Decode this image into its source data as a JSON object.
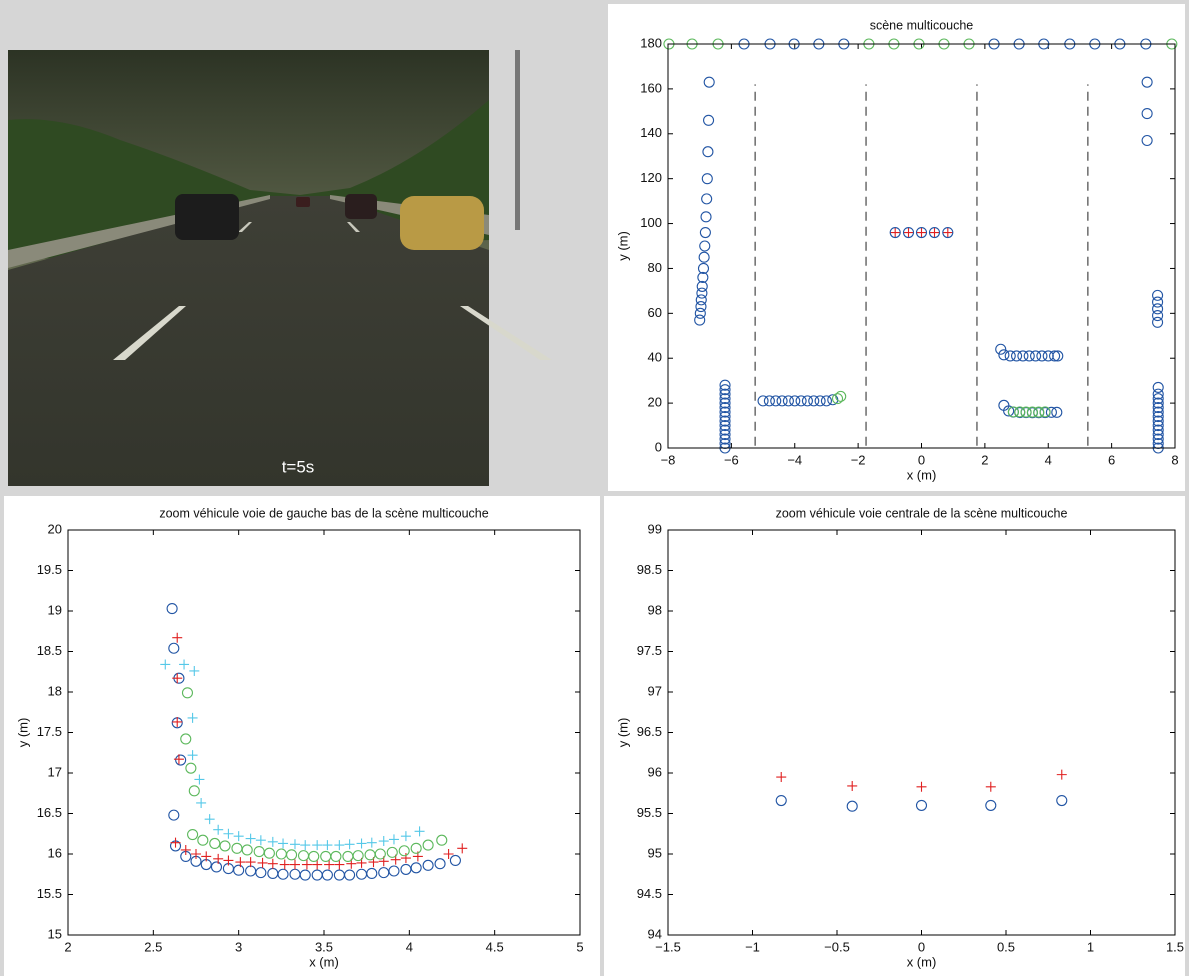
{
  "image": {
    "caption": "t=5s"
  },
  "chart_data": [
    {
      "type": "scatter",
      "title": "scène multicouche",
      "xlabel": "x (m)",
      "ylabel": "y (m)",
      "xlim": [
        -8,
        8
      ],
      "ylim": [
        0,
        180
      ],
      "xticks": [
        {
          "value": -8,
          "label": "−8"
        },
        {
          "value": -6,
          "label": "−6"
        },
        {
          "value": -4,
          "label": "−4"
        },
        {
          "value": -2,
          "label": "−2"
        },
        0,
        2,
        4,
        6,
        8
      ],
      "yticks": [
        0,
        20,
        40,
        60,
        80,
        100,
        120,
        140,
        160,
        180
      ],
      "lane_markings_x": [
        -5.25,
        -1.75,
        1.75,
        5.25
      ],
      "lane_markings_y": [
        1,
        162
      ],
      "series": [
        {
          "color": "#5cb85c",
          "marker": "o",
          "x": [
            -7.97,
            -7.24,
            -6.42,
            -1.66,
            -0.87,
            -0.08,
            0.71,
            1.5,
            7.9
          ],
          "y": [
            180,
            180,
            180,
            180,
            180,
            180,
            180,
            180,
            180
          ]
        },
        {
          "color": "#2255a4",
          "marker": "o",
          "x": [
            -5.6,
            -4.78,
            -4.02,
            -3.24,
            -2.45,
            2.29,
            3.08,
            3.86,
            4.68,
            5.47,
            6.26,
            7.08
          ],
          "y": [
            180,
            180,
            180,
            180,
            180,
            180,
            180,
            180,
            180,
            180,
            180,
            180
          ]
        },
        {
          "color": "#2255a4",
          "marker": "o",
          "x": [
            -6.2,
            -6.2,
            -6.2,
            -6.2,
            -6.2,
            -6.2,
            -6.2,
            -6.2,
            -6.2,
            -6.2,
            -6.2,
            -6.2,
            -6.2,
            -6.2,
            -6.2,
            -7.0,
            -6.98,
            -6.96,
            -6.95,
            -6.93,
            -6.92,
            -6.9,
            -6.88,
            -6.86,
            -6.84,
            -6.82,
            -6.8,
            -6.78,
            -6.76,
            -6.74,
            -6.72,
            -6.7
          ],
          "y": [
            0,
            2,
            4,
            6,
            8,
            10,
            12,
            14,
            16,
            18,
            20,
            22,
            24,
            26,
            28,
            57,
            60,
            63,
            66,
            69,
            72,
            76,
            80,
            85,
            90,
            96,
            103,
            111,
            120,
            132,
            146,
            163
          ]
        },
        {
          "color": "#2255a4",
          "marker": "o",
          "x": [
            7.47,
            7.47,
            7.47,
            7.47,
            7.47,
            7.47,
            7.47,
            7.47,
            7.47,
            7.47,
            7.47,
            7.47,
            7.47,
            7.47,
            7.45,
            7.45,
            7.45,
            7.45,
            7.45,
            7.12,
            7.12,
            7.12
          ],
          "y": [
            0,
            2,
            4,
            6,
            8,
            10,
            12,
            14,
            16,
            18,
            20,
            22,
            24,
            27,
            56,
            59,
            62,
            65,
            68,
            137,
            149,
            163
          ]
        },
        {
          "color": "#2255a4",
          "marker": "o",
          "x": [
            -5.0,
            -4.8,
            -4.6,
            -4.4,
            -4.2,
            -4.0,
            -3.8,
            -3.6,
            -3.4,
            -3.2,
            -3.0,
            -2.8
          ],
          "y": [
            21,
            21,
            21,
            21,
            21,
            21,
            21,
            21,
            21,
            21,
            21,
            21.5
          ]
        },
        {
          "color": "#5cb85c",
          "marker": "o",
          "x": [
            -2.65,
            -2.55
          ],
          "y": [
            22,
            23
          ]
        },
        {
          "color": "#2255a4",
          "marker": "o",
          "x": [
            2.5,
            2.6,
            2.8,
            3.0,
            3.2,
            3.4,
            3.6,
            3.8,
            4.0,
            4.2,
            4.3
          ],
          "y": [
            44,
            41.5,
            41,
            41,
            41,
            41,
            41,
            41,
            41,
            41,
            41
          ]
        },
        {
          "color": "#2255a4",
          "marker": "o",
          "x": [
            2.6,
            2.75,
            2.9,
            3.1,
            3.3,
            3.5,
            3.7,
            3.9,
            4.1,
            4.27
          ],
          "y": [
            19,
            16.5,
            16,
            15.8,
            15.8,
            15.7,
            15.7,
            15.8,
            15.9,
            15.9
          ]
        },
        {
          "color": "#5cb85c",
          "marker": "o",
          "x": [
            2.9,
            3.1,
            3.3,
            3.5,
            3.7,
            3.9
          ],
          "y": [
            16.1,
            16.1,
            16.0,
            16.0,
            16.0,
            16.1
          ]
        },
        {
          "color": "#e02020",
          "marker": "+",
          "x": [
            -0.83,
            -0.41,
            0,
            0.41,
            0.83
          ],
          "y": [
            96,
            96,
            96,
            96,
            96
          ]
        },
        {
          "color": "#2255a4",
          "marker": "o",
          "x": [
            -0.83,
            -0.41,
            0,
            0.41,
            0.83
          ],
          "y": [
            96,
            96,
            96,
            96,
            96
          ]
        }
      ]
    },
    {
      "type": "scatter",
      "title": "zoom véhicule voie de gauche bas de la scène multicouche",
      "xlabel": "x (m)",
      "ylabel": "y (m)",
      "xlim": [
        2,
        5
      ],
      "ylim": [
        15,
        20
      ],
      "xticks": [
        2,
        2.5,
        3,
        3.5,
        4,
        4.5,
        5
      ],
      "yticks": [
        15,
        15.5,
        16,
        16.5,
        17,
        17.5,
        18,
        18.5,
        19,
        19.5,
        20
      ],
      "series": [
        {
          "color": "#2255a4",
          "marker": "o",
          "x": [
            2.61,
            2.62,
            2.65,
            2.64,
            2.66,
            2.62,
            2.63,
            2.69,
            2.75,
            2.81,
            2.87,
            2.94,
            3.0,
            3.07,
            3.13,
            3.2,
            3.26,
            3.33,
            3.39,
            3.46,
            3.52,
            3.59,
            3.65,
            3.72,
            3.78,
            3.85,
            3.91,
            3.98,
            4.04,
            4.11,
            4.18,
            4.27
          ],
          "y": [
            19.03,
            18.54,
            18.17,
            17.62,
            17.16,
            16.48,
            16.1,
            15.97,
            15.91,
            15.87,
            15.84,
            15.82,
            15.8,
            15.79,
            15.77,
            15.76,
            15.75,
            15.75,
            15.74,
            15.74,
            15.74,
            15.74,
            15.74,
            15.75,
            15.76,
            15.77,
            15.79,
            15.81,
            15.83,
            15.86,
            15.88,
            15.92
          ]
        },
        {
          "color": "#e02020",
          "marker": "+",
          "x": [
            2.64,
            2.64,
            2.64,
            2.65,
            2.63,
            2.69,
            2.75,
            2.81,
            2.88,
            2.94,
            3.01,
            3.07,
            3.14,
            3.2,
            3.27,
            3.33,
            3.4,
            3.46,
            3.53,
            3.59,
            3.66,
            3.72,
            3.79,
            3.85,
            3.92,
            3.98,
            4.05,
            4.23,
            4.31
          ],
          "y": [
            18.67,
            18.17,
            17.63,
            17.17,
            16.14,
            16.05,
            16.0,
            15.97,
            15.94,
            15.92,
            15.9,
            15.9,
            15.89,
            15.88,
            15.87,
            15.87,
            15.87,
            15.87,
            15.87,
            15.87,
            15.88,
            15.89,
            15.9,
            15.91,
            15.93,
            15.95,
            15.97,
            16.0,
            16.07
          ]
        },
        {
          "color": "#55c8e8",
          "marker": "+",
          "x": [
            2.57,
            2.68,
            2.74,
            2.73,
            2.73,
            2.77,
            2.78,
            2.83,
            2.88,
            2.94,
            3.0,
            3.07,
            3.13,
            3.2,
            3.26,
            3.33,
            3.39,
            3.46,
            3.52,
            3.59,
            3.65,
            3.72,
            3.78,
            3.85,
            3.91,
            3.98,
            4.06
          ],
          "y": [
            18.34,
            18.34,
            18.26,
            17.68,
            17.22,
            16.92,
            16.63,
            16.43,
            16.3,
            16.25,
            16.22,
            16.19,
            16.17,
            16.15,
            16.13,
            16.12,
            16.11,
            16.11,
            16.11,
            16.11,
            16.12,
            16.13,
            16.14,
            16.16,
            16.18,
            16.22,
            16.28
          ]
        },
        {
          "color": "#5cb85c",
          "marker": "o",
          "x": [
            2.7,
            2.69,
            2.72,
            2.74,
            2.73,
            2.79,
            2.86,
            2.92,
            2.99,
            3.05,
            3.12,
            3.18,
            3.25,
            3.31,
            3.38,
            3.44,
            3.51,
            3.57,
            3.64,
            3.7,
            3.77,
            3.83,
            3.9,
            3.97,
            4.04,
            4.11,
            4.19
          ],
          "y": [
            17.99,
            17.42,
            17.06,
            16.78,
            16.24,
            16.17,
            16.13,
            16.1,
            16.07,
            16.05,
            16.03,
            16.01,
            16.0,
            15.99,
            15.98,
            15.97,
            15.97,
            15.97,
            15.97,
            15.98,
            15.99,
            16.0,
            16.02,
            16.04,
            16.07,
            16.11,
            16.17
          ]
        }
      ]
    },
    {
      "type": "scatter",
      "title": "zoom véhicule voie centrale de la scène multicouche",
      "xlabel": "x (m)",
      "ylabel": "y (m)",
      "xlim": [
        -1.5,
        1.5
      ],
      "ylim": [
        94,
        99
      ],
      "xticks": [
        {
          "value": -1.5,
          "label": "−1.5"
        },
        {
          "value": -1,
          "label": "−1"
        },
        {
          "value": -0.5,
          "label": "−0.5"
        },
        0,
        0.5,
        1,
        1.5
      ],
      "yticks": [
        94,
        94.5,
        95,
        95.5,
        96,
        96.5,
        97,
        97.5,
        98,
        98.5,
        99
      ],
      "series": [
        {
          "color": "#e02020",
          "marker": "+",
          "x": [
            -0.83,
            -0.41,
            0,
            0.41,
            0.83
          ],
          "y": [
            95.95,
            95.84,
            95.83,
            95.83,
            95.98
          ]
        },
        {
          "color": "#2255a4",
          "marker": "o",
          "x": [
            -0.83,
            -0.41,
            0,
            0.41,
            0.83
          ],
          "y": [
            95.66,
            95.59,
            95.6,
            95.6,
            95.66
          ]
        }
      ]
    }
  ]
}
